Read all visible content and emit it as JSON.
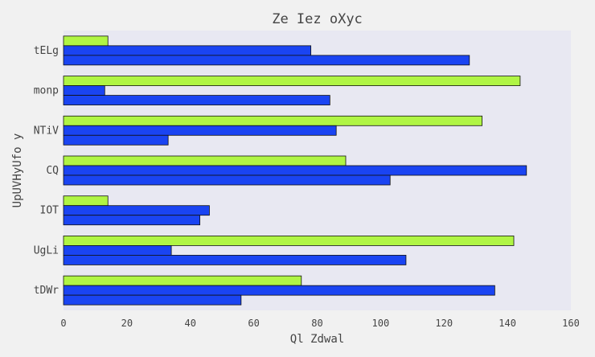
{
  "chart_data": {
    "type": "bar",
    "orientation": "horizontal",
    "title": "Ze Iez oXyc",
    "xlabel": "Ql Zdwal",
    "ylabel": "UpUVHyUfo y",
    "xlim": [
      0,
      160
    ],
    "xticks": [
      0,
      20,
      40,
      60,
      80,
      100,
      120,
      140,
      160
    ],
    "categories": [
      "tELg",
      "monp",
      "NTiV",
      "CQ",
      "IOT",
      "UgLi",
      "tDWr"
    ],
    "series": [
      {
        "color": "#b0f545",
        "values": [
          14,
          144,
          132,
          89,
          14,
          142,
          75
        ]
      },
      {
        "color": "#1a44f2",
        "values": [
          78,
          13,
          86,
          146,
          46,
          34,
          136
        ]
      },
      {
        "color": "#1a44f2",
        "values": [
          128,
          84,
          33,
          103,
          43,
          108,
          56
        ]
      }
    ],
    "grid": false,
    "legend": "none",
    "plot_background": "#e8e8f2"
  }
}
